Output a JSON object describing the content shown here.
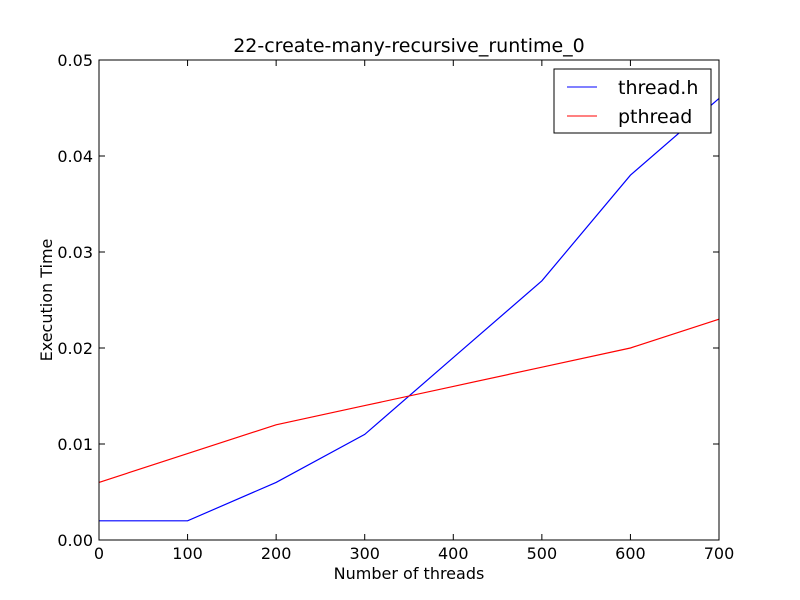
{
  "chart_data": {
    "type": "line",
    "title": "22-create-many-recursive_runtime_0",
    "xlabel": "Number of threads",
    "ylabel": "Execution Time",
    "xlim": [
      0,
      700
    ],
    "ylim": [
      0,
      0.05
    ],
    "xticks": [
      0,
      100,
      200,
      300,
      400,
      500,
      600,
      700
    ],
    "xtick_labels": [
      "0",
      "100",
      "200",
      "300",
      "400",
      "500",
      "600",
      "700"
    ],
    "yticks": [
      0,
      0.01,
      0.02,
      0.03,
      0.04,
      0.05
    ],
    "ytick_labels": [
      "0.00",
      "0.01",
      "0.02",
      "0.03",
      "0.04",
      "0.05"
    ],
    "grid": false,
    "legend_position": "top-right",
    "series": [
      {
        "name": "thread.h",
        "color": "#0000ff",
        "x": [
          0,
          100,
          200,
          300,
          400,
          500,
          600,
          700
        ],
        "values": [
          0.002,
          0.002,
          0.006,
          0.011,
          0.019,
          0.027,
          0.038,
          0.046
        ]
      },
      {
        "name": "pthread",
        "color": "#ff0000",
        "x": [
          0,
          100,
          200,
          300,
          400,
          500,
          600,
          700
        ],
        "values": [
          0.006,
          0.009,
          0.012,
          0.014,
          0.016,
          0.018,
          0.02,
          0.023
        ]
      }
    ]
  }
}
